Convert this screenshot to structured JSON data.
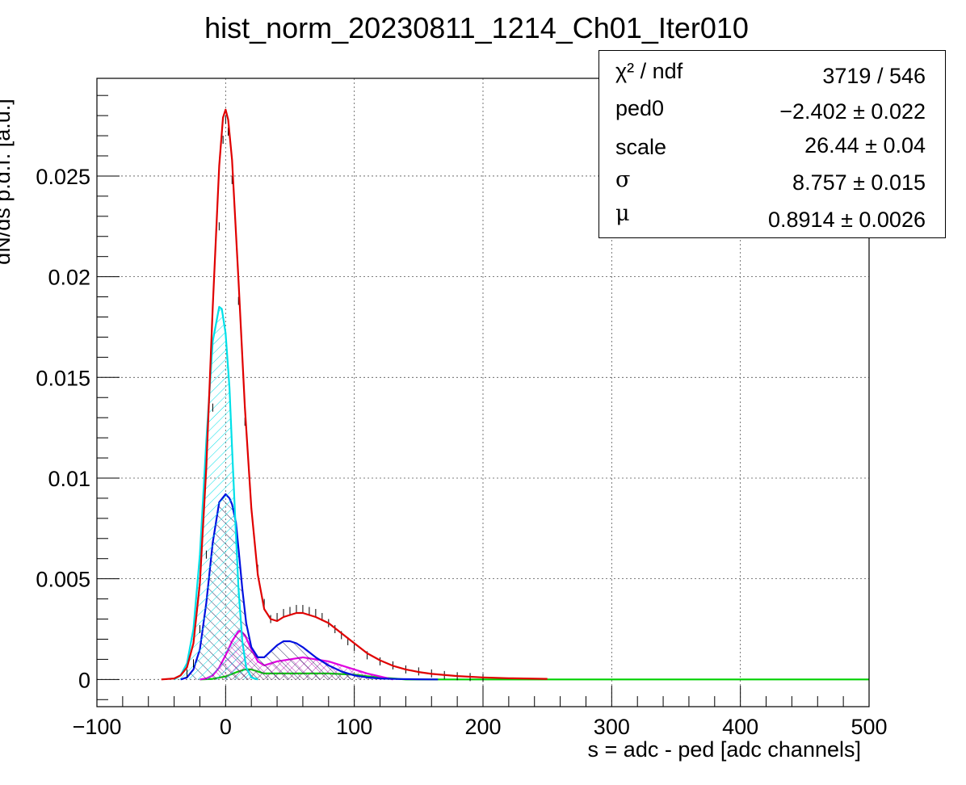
{
  "chart_data": {
    "type": "line",
    "title": "hist_norm_20230811_1214_Ch01_Iter010",
    "xlabel": "s = adc - ped [adc channels]",
    "ylabel": "dN/ds p.d.f. [a.u.]",
    "xlim": [
      -100,
      500
    ],
    "ylim": [
      -0.00135,
      0.02985
    ],
    "x_ticks": [
      {
        "value": -100,
        "label": "−100"
      },
      {
        "value": 0,
        "label": "0"
      },
      {
        "value": 100,
        "label": "100"
      },
      {
        "value": 200,
        "label": "200"
      },
      {
        "value": 300,
        "label": "300"
      },
      {
        "value": 400,
        "label": "400"
      },
      {
        "value": 500,
        "label": "500"
      }
    ],
    "y_ticks": [
      {
        "value": 0,
        "label": "0"
      },
      {
        "value": 0.005,
        "label": "0.005"
      },
      {
        "value": 0.01,
        "label": "0.01"
      },
      {
        "value": 0.015,
        "label": "0.015"
      },
      {
        "value": 0.02,
        "label": "0.02"
      },
      {
        "value": 0.025,
        "label": "0.025"
      }
    ],
    "grid": true,
    "series": [
      {
        "kind": "data-points",
        "color": "#000000",
        "x": [
          -30,
          -25,
          -20,
          -15,
          -10,
          -5,
          -2,
          0,
          2,
          5,
          10,
          15,
          20,
          25,
          30,
          35,
          40,
          45,
          50,
          55,
          60,
          65,
          70,
          75,
          80,
          85,
          90,
          95,
          100,
          110,
          120,
          130,
          140,
          150,
          160,
          170,
          180,
          190,
          200
        ],
        "y": [
          0.0003,
          0.0008,
          0.0025,
          0.0062,
          0.0135,
          0.0225,
          0.0268,
          0.0278,
          0.0272,
          0.0248,
          0.0188,
          0.0128,
          0.0085,
          0.0055,
          0.0038,
          0.003,
          0.0031,
          0.0033,
          0.0034,
          0.0035,
          0.0035,
          0.0034,
          0.0033,
          0.0031,
          0.0028,
          0.0025,
          0.0022,
          0.0019,
          0.0016,
          0.0012,
          0.0009,
          0.0007,
          0.0005,
          0.0004,
          0.0003,
          0.00022,
          0.00016,
          0.00012,
          8e-05
        ]
      },
      {
        "kind": "fit-total",
        "color": "#e00000",
        "fill": "none",
        "x": [
          -50,
          -40,
          -35,
          -30,
          -25,
          -20,
          -15,
          -10,
          -5,
          -2,
          0,
          2,
          5,
          10,
          15,
          20,
          25,
          30,
          35,
          40,
          45,
          50,
          55,
          60,
          65,
          70,
          80,
          90,
          100,
          110,
          120,
          130,
          140,
          150,
          160,
          180,
          200,
          220,
          250
        ],
        "y": [
          0,
          5e-05,
          0.0002,
          0.0006,
          0.0018,
          0.0048,
          0.0105,
          0.0185,
          0.0255,
          0.0279,
          0.0283,
          0.0278,
          0.0258,
          0.0198,
          0.0135,
          0.0085,
          0.0052,
          0.0035,
          0.003,
          0.0029,
          0.0031,
          0.0032,
          0.0033,
          0.0033,
          0.0032,
          0.0031,
          0.0028,
          0.0023,
          0.0018,
          0.0013,
          0.00095,
          0.00068,
          0.0005,
          0.00037,
          0.00028,
          0.00017,
          0.0001,
          6e-05,
          3e-05
        ]
      },
      {
        "kind": "component-0pe",
        "color": "#00e0e8",
        "fill": "hatch-cyan",
        "x": [
          -40,
          -35,
          -30,
          -25,
          -20,
          -15,
          -10,
          -5,
          -3,
          0,
          3,
          5,
          8,
          10,
          13,
          16,
          20,
          25
        ],
        "y": [
          0,
          0.0002,
          0.0008,
          0.0025,
          0.0062,
          0.0118,
          0.0168,
          0.0185,
          0.0184,
          0.0172,
          0.0145,
          0.0115,
          0.0072,
          0.0045,
          0.0019,
          0.0006,
          0.0001,
          0
        ],
        "baseline": 0
      },
      {
        "kind": "component-1pe",
        "color": "#0010e0",
        "fill": "hatch-blue",
        "x": [
          -35,
          -30,
          -25,
          -20,
          -15,
          -10,
          -5,
          0,
          3,
          5,
          8,
          10,
          13,
          16,
          20,
          25,
          30,
          35,
          40,
          45,
          50,
          55,
          60,
          70,
          80,
          90,
          100,
          110,
          120,
          135,
          150,
          165
        ],
        "y": [
          0,
          0.0001,
          0.0005,
          0.0015,
          0.0038,
          0.0068,
          0.0088,
          0.0092,
          0.009,
          0.0087,
          0.0078,
          0.0065,
          0.0045,
          0.0028,
          0.0016,
          0.0011,
          0.0011,
          0.0014,
          0.0017,
          0.0019,
          0.0019,
          0.0018,
          0.0016,
          0.0011,
          0.0007,
          0.0004,
          0.0002,
          0.0001,
          5e-05,
          2e-05,
          1e-05,
          0
        ],
        "baseline": 0
      },
      {
        "kind": "component-2pe",
        "color": "#e000e0",
        "fill": "hatch-magenta",
        "x": [
          -20,
          -15,
          -10,
          -5,
          0,
          5,
          10,
          12,
          15,
          20,
          25,
          30,
          35,
          40,
          50,
          60,
          70,
          80,
          90,
          100,
          110,
          120,
          130
        ],
        "y": [
          0,
          5e-05,
          0.0002,
          0.0006,
          0.0012,
          0.0019,
          0.0024,
          0.0024,
          0.0022,
          0.0015,
          0.0009,
          0.0007,
          0.0008,
          0.0009,
          0.001,
          0.0011,
          0.001,
          0.0009,
          0.0007,
          0.0005,
          0.0003,
          0.00015,
          0
        ],
        "baseline": 0
      },
      {
        "kind": "component-3pe",
        "color": "#00d000",
        "fill": "hatch-green",
        "x": [
          -20,
          -10,
          0,
          10,
          15,
          20,
          25,
          30,
          40,
          60,
          80,
          100,
          110,
          120,
          130,
          140,
          500
        ],
        "y": [
          0,
          3e-05,
          0.00015,
          0.0004,
          0.0005,
          0.0005,
          0.0004,
          0.0003,
          0.0003,
          0.0003,
          0.0003,
          0.00024,
          0.00016,
          0.0001,
          5e-05,
          0,
          0
        ],
        "baseline": 0
      }
    ]
  },
  "stats_box": {
    "rows": [
      {
        "label": "χ² / ndf",
        "value": "3719 / 546"
      },
      {
        "label": "ped0",
        "value": "−2.402 ± 0.022"
      },
      {
        "label": "scale",
        "value": "26.44 ± 0.04"
      },
      {
        "label": "σ",
        "value": "8.757 ± 0.015"
      },
      {
        "label": "μ",
        "value": "0.8914 ± 0.0026"
      }
    ]
  }
}
